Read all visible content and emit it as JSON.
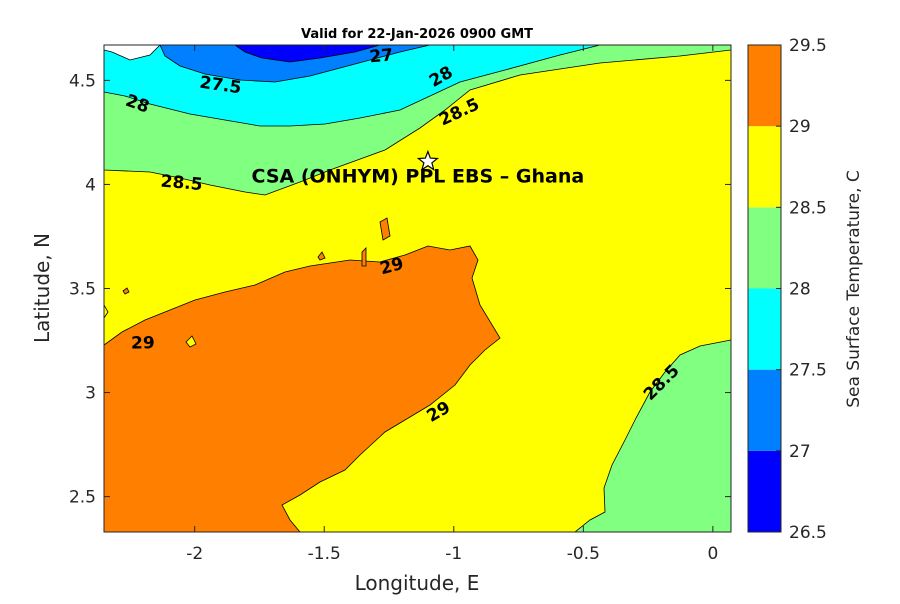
{
  "chart_data": {
    "type": "contour",
    "title": "Valid for 22-Jan-2026 0900 GMT",
    "xlabel": "Longitude, E",
    "ylabel": "Latitude, N",
    "colorbar_label": "Sea Surface Temperature, C",
    "xlim": [
      -2.35,
      0.07
    ],
    "ylim": [
      2.33,
      4.67
    ],
    "x_ticks": [
      -2,
      -1.5,
      -1,
      -0.5,
      0
    ],
    "y_ticks": [
      2.5,
      3,
      3.5,
      4,
      4.5
    ],
    "x_tick_labels": [
      "-2",
      "-1.5",
      "-1",
      "-0.5",
      "0"
    ],
    "y_tick_labels": [
      "2.5",
      "3",
      "3.5",
      "4",
      "4.5"
    ],
    "levels": [
      26.5,
      27,
      27.5,
      28,
      28.5,
      29,
      29.5
    ],
    "level_labels": [
      "26.5",
      "27",
      "27.5",
      "28",
      "28.5",
      "29",
      "29.5"
    ],
    "colors": [
      "#0000ff",
      "#0080ff",
      "#00ffff",
      "#80ff80",
      "#ffff00",
      "#ff8000"
    ],
    "contour_labels": [
      {
        "text": "27",
        "lon": -1.28,
        "lat": 4.62
      },
      {
        "text": "27.5",
        "lon": -1.9,
        "lat": 4.48
      },
      {
        "text": "28",
        "lon": -1.05,
        "lat": 4.52
      },
      {
        "text": "28",
        "lon": -2.22,
        "lat": 4.39
      },
      {
        "text": "28.5",
        "lon": -0.98,
        "lat": 4.35
      },
      {
        "text": "28.5",
        "lon": -2.05,
        "lat": 4.01
      },
      {
        "text": "29",
        "lon": -1.24,
        "lat": 3.61
      },
      {
        "text": "29",
        "lon": -2.2,
        "lat": 3.24
      },
      {
        "text": "29",
        "lon": -1.06,
        "lat": 2.91
      },
      {
        "text": "28.5",
        "lon": -0.2,
        "lat": 3.05
      }
    ],
    "site": {
      "name": "CSA (ONHYM) PPL EBS  – Ghana",
      "lon": -1.1,
      "lat": 4.11
    }
  }
}
